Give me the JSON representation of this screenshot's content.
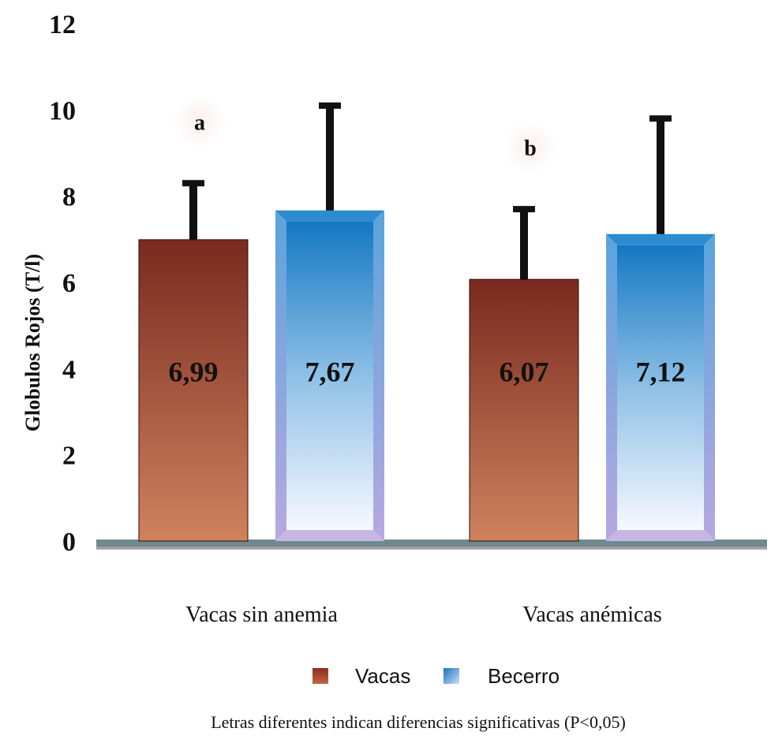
{
  "chart_data": {
    "type": "bar",
    "ylabel": "Globulos Rojos (T/l)",
    "ylim": [
      0,
      12
    ],
    "yticks": [
      0,
      2,
      4,
      6,
      8,
      10,
      12
    ],
    "categories": [
      "Vacas sin anemia",
      "Vacas anémicas"
    ],
    "series": [
      {
        "name": "Vacas",
        "values": [
          6.99,
          6.07
        ],
        "value_labels": [
          "6,99",
          "6,07"
        ],
        "error_upper": [
          8.3,
          7.7
        ],
        "color": "#7a2a1e"
      },
      {
        "name": "Becerro",
        "values": [
          7.67,
          7.12
        ],
        "value_labels": [
          "7,67",
          "7,12"
        ],
        "error_upper": [
          10.1,
          9.8
        ],
        "color": "#1b7ec6"
      }
    ],
    "significance_letters": [
      "a",
      "b"
    ],
    "grid": false,
    "legend_position": "bottom",
    "footnote": "Letras diferentes indican diferencias significativas (P<0,05)"
  }
}
